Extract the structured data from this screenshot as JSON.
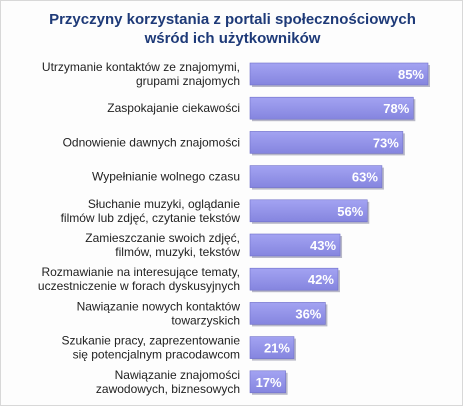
{
  "chart_data": {
    "type": "bar",
    "orientation": "horizontal",
    "title": "Przyczyny korzystania z portali społecznościowych\nwśród ich użytkowników",
    "categories": [
      "Utrzymanie kontaktów ze znajomymi,\ngrupami znajomych",
      "Zaspokajanie ciekawości",
      "Odnowienie dawnych znajomości",
      "Wypełnianie wolnego czasu",
      "Słuchanie muzyki, oglądanie\nfilmów lub zdjęć, czytanie tekstów",
      "Zamieszczanie swoich zdjęć,\nfilmów, muzyki, tekstów",
      "Rozmawianie na interesujące tematy,\nuczestniczenie w forach dyskusyjnych",
      "Nawiązanie nowych kontaktów\ntowarzyskich",
      "Szukanie pracy, zaprezentowanie\nsię potencjalnym pracodawcom",
      "Nawiązanie znajomości\nzawodowych, biznesowych"
    ],
    "values": [
      85,
      78,
      73,
      63,
      56,
      43,
      42,
      36,
      21,
      17
    ],
    "value_labels": [
      "85%",
      "78%",
      "73%",
      "63%",
      "56%",
      "43%",
      "42%",
      "36%",
      "21%",
      "17%"
    ],
    "xlim": [
      0,
      100
    ],
    "grid": false,
    "colors": {
      "bar": "#8f8fe8",
      "bar_shadow": "#7070c8",
      "value_text": "#ffffff",
      "title": "#1e3a78"
    }
  }
}
